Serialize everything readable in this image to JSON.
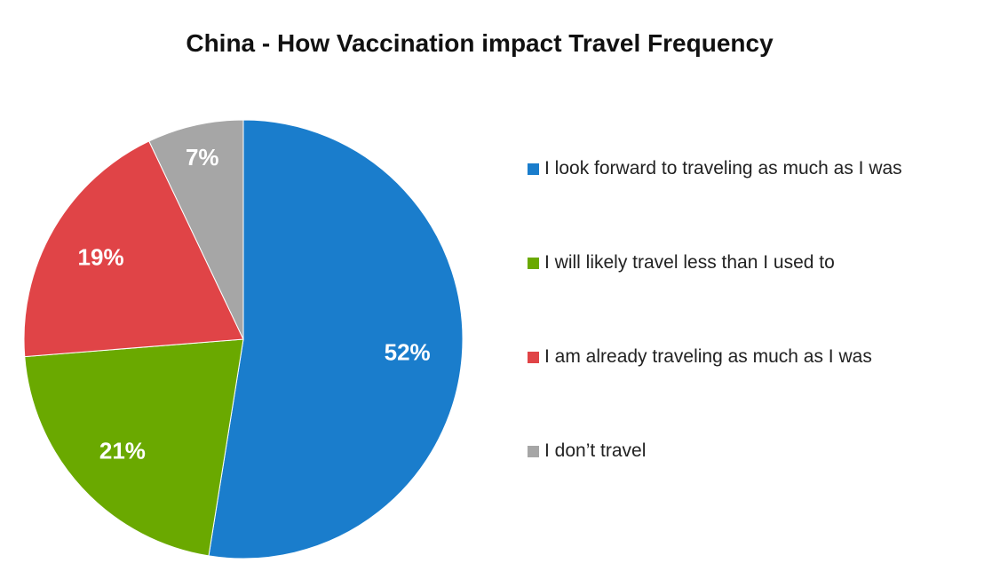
{
  "chart_data": {
    "type": "pie",
    "title": "China -  How Vaccination impact Travel Frequency",
    "slices": [
      {
        "name": "I look forward to traveling as much as I was",
        "value": 52,
        "label": "52%",
        "color": "#1a7dcc"
      },
      {
        "name": "I will likely travel less than I used to",
        "value": 21,
        "label": "21%",
        "color": "#6aa900"
      },
      {
        "name": "I am already traveling as much as I was",
        "value": 19,
        "label": "19%",
        "color": "#e04447"
      },
      {
        "name": "I don’t travel",
        "value": 7,
        "label": "7%",
        "color": "#a6a6a6"
      }
    ],
    "legend_position": "right"
  }
}
